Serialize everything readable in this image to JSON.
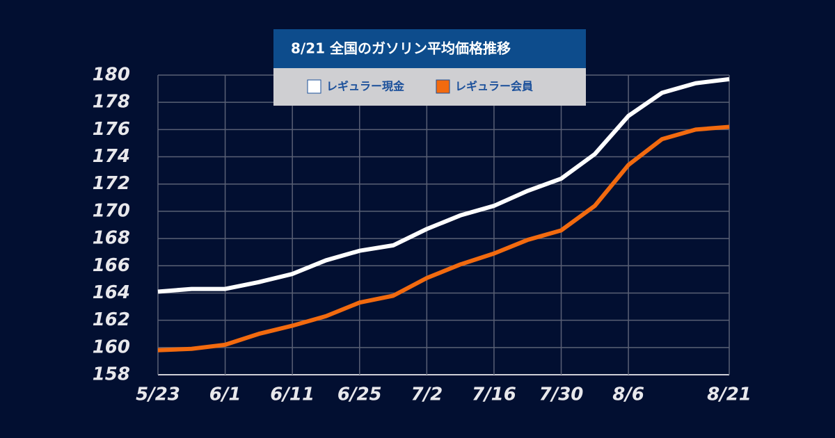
{
  "chart_data": {
    "type": "line",
    "title": "8/21  全国のガソリン平均価格推移",
    "categories": [
      "5/23",
      null,
      "6/1",
      null,
      "6/11",
      null,
      "6/25",
      null,
      "7/2",
      null,
      "7/16",
      null,
      "7/30",
      null,
      "8/6",
      null,
      null,
      "8/21"
    ],
    "series": [
      {
        "name": "レギュラー現金",
        "color": "#ffffff",
        "values": [
          164.1,
          164.3,
          164.3,
          164.8,
          165.4,
          166.4,
          167.1,
          167.5,
          168.7,
          169.7,
          170.4,
          171.5,
          172.4,
          174.2,
          177.0,
          178.7,
          179.4,
          179.7
        ]
      },
      {
        "name": "レギュラー会員",
        "color": "#f26a0f",
        "values": [
          159.8,
          159.9,
          160.2,
          161.0,
          161.6,
          162.3,
          163.3,
          163.8,
          165.1,
          166.1,
          166.9,
          167.9,
          168.6,
          170.4,
          173.4,
          175.3,
          176.0,
          176.2
        ]
      }
    ],
    "ylim": [
      158,
      180
    ],
    "yticks": [
      158,
      160,
      162,
      164,
      166,
      168,
      170,
      172,
      174,
      176,
      178,
      180
    ],
    "grid": true
  }
}
